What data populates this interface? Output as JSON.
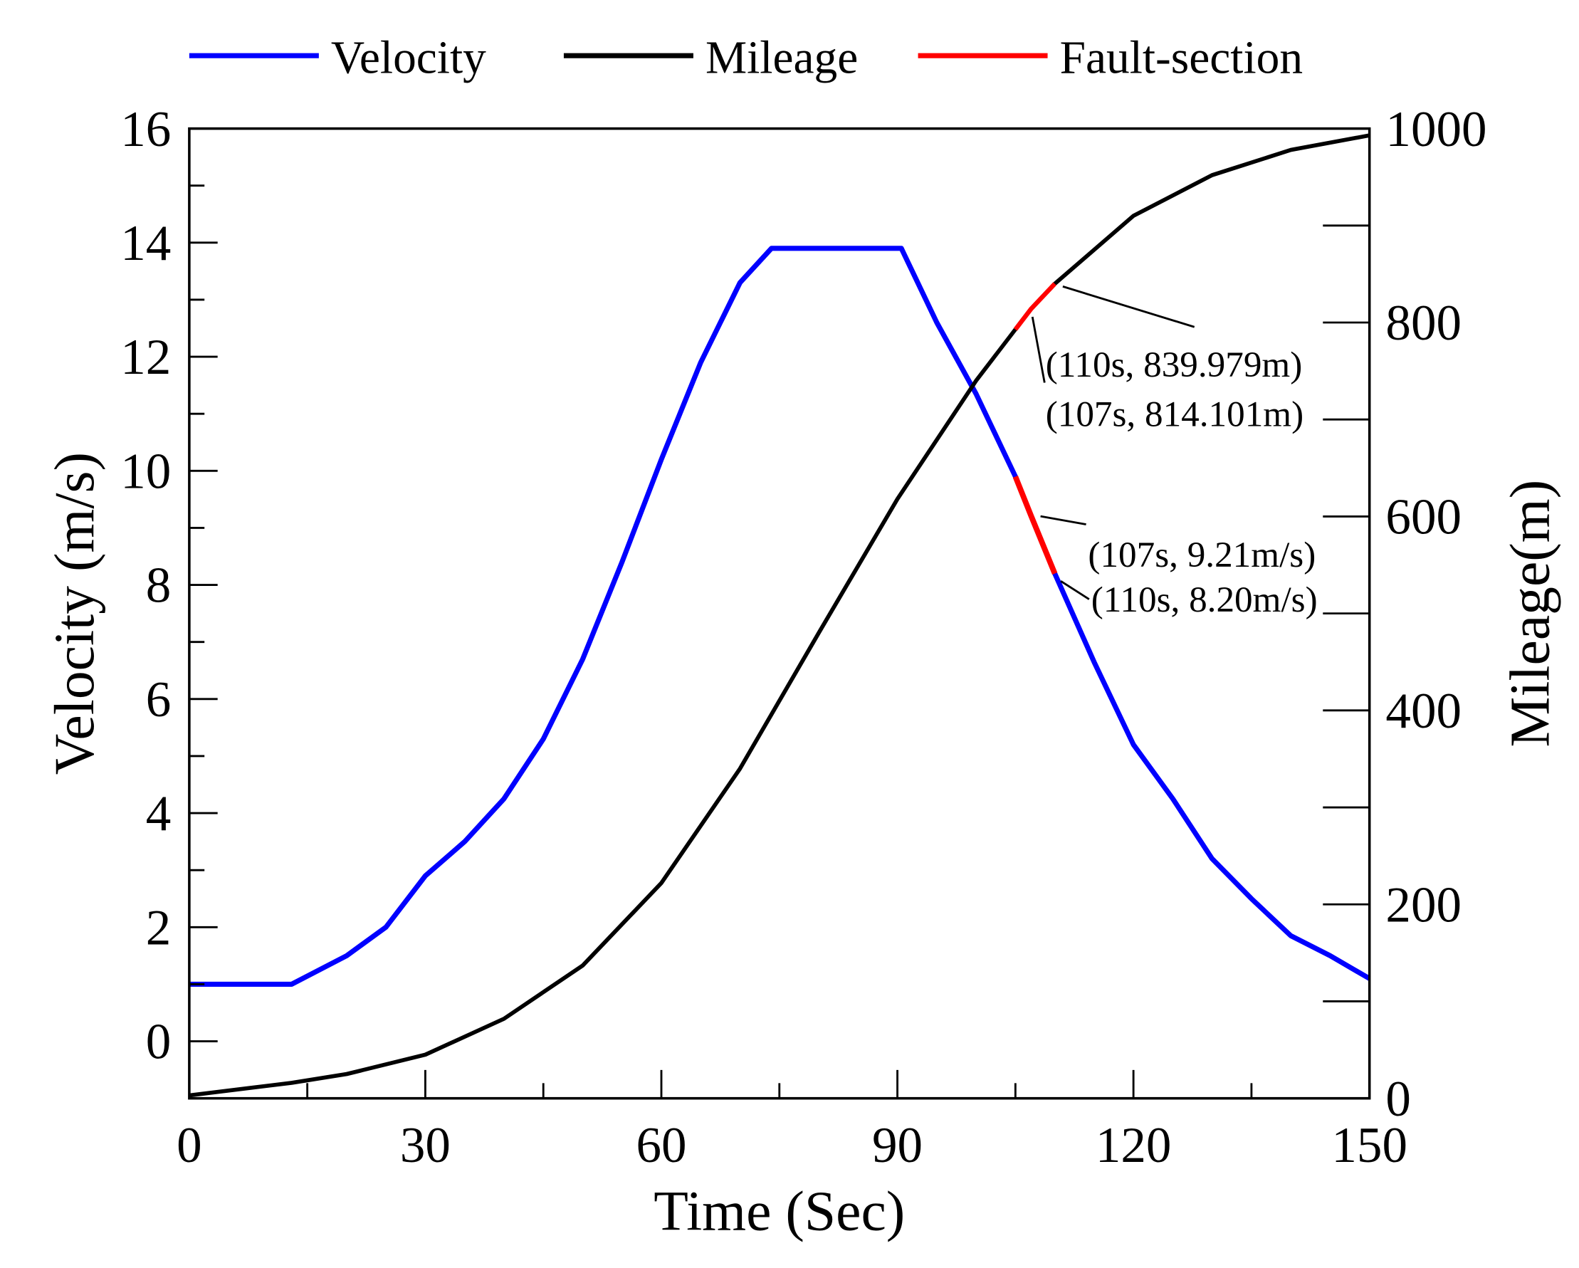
{
  "chart_data": {
    "type": "line",
    "title": "",
    "xlabel": "Time (Sec)",
    "ylabel_left": "Velocity (m/s)",
    "ylabel_right": "Mileage(m)",
    "xlim": [
      0,
      150
    ],
    "ylim_left": [
      -1,
      16
    ],
    "ylim_right": [
      0,
      1000
    ],
    "x_ticks": [
      "0",
      "30",
      "60",
      "90",
      "120",
      "150"
    ],
    "y_left_ticks": [
      "0",
      "2",
      "4",
      "6",
      "8",
      "10",
      "12",
      "14",
      "16"
    ],
    "y_right_ticks": [
      "0",
      "200",
      "400",
      "600",
      "800",
      "1000"
    ],
    "grid": false,
    "legend_position": "top",
    "legend": [
      {
        "label": "Velocity",
        "color": "#0000ff"
      },
      {
        "label": "Mileage",
        "color": "#000000"
      },
      {
        "label": "Fault-section",
        "color": "#ff0000"
      }
    ],
    "series": [
      {
        "name": "Velocity",
        "axis": "left",
        "color": "#0000ff",
        "x": [
          0,
          13,
          20,
          25,
          30,
          35,
          40,
          45,
          50,
          55,
          60,
          65,
          70,
          74,
          80,
          85,
          90.5,
          95,
          100,
          105,
          107,
          110,
          115,
          120,
          125,
          130,
          135,
          140,
          145,
          150
        ],
        "y": [
          1,
          1,
          1.5,
          2.0,
          2.9,
          3.5,
          4.25,
          5.3,
          6.7,
          8.4,
          10.2,
          11.9,
          13.3,
          13.9,
          13.9,
          13.9,
          13.9,
          12.6,
          11.35,
          9.9,
          9.21,
          8.2,
          6.65,
          5.2,
          4.25,
          3.2,
          2.5,
          1.85,
          1.5,
          1.1
        ]
      },
      {
        "name": "Mileage",
        "axis": "right",
        "color": "#000000",
        "x": [
          0,
          13,
          20,
          30,
          40,
          50,
          60,
          70,
          80,
          90,
          100,
          107,
          110,
          120,
          130,
          140,
          150
        ],
        "y": [
          3,
          16,
          25,
          45,
          82,
          137,
          222,
          340,
          480,
          618,
          740,
          814.101,
          839.979,
          910,
          952,
          978,
          993
        ]
      }
    ],
    "fault_section": {
      "x_range": [
        105,
        110
      ],
      "color": "#ff0000"
    },
    "annotations": [
      {
        "text": "(110s, 839.979m)"
      },
      {
        "text": "(107s, 814.101m)"
      },
      {
        "text": "(107s, 9.21m/s)"
      },
      {
        "text": "(110s, 8.20m/s)"
      }
    ]
  }
}
